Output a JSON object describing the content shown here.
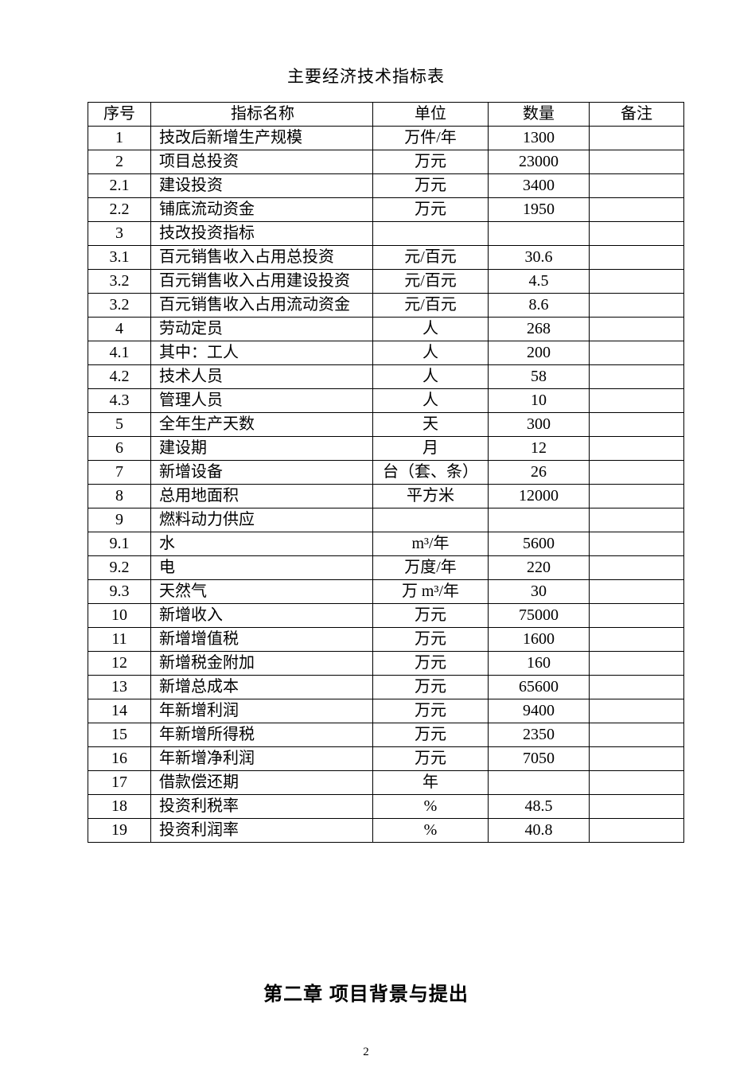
{
  "title": "主要经济技术指标表",
  "header": {
    "no": "序号",
    "name": "指标名称",
    "unit": "单位",
    "qty": "数量",
    "note": "备注"
  },
  "rows": [
    {
      "no": "1",
      "name": "技改后新增生产规模",
      "unit": "万件/年",
      "qty": "1300",
      "note": ""
    },
    {
      "no": "2",
      "name": "项目总投资",
      "unit": "万元",
      "qty": "23000",
      "note": ""
    },
    {
      "no": "2.1",
      "name": "建设投资",
      "unit": "万元",
      "qty": "3400",
      "note": ""
    },
    {
      "no": "2.2",
      "name": "铺底流动资金",
      "unit": "万元",
      "qty": "1950",
      "note": ""
    },
    {
      "no": "3",
      "name": "技改投资指标",
      "unit": "",
      "qty": "",
      "note": ""
    },
    {
      "no": "3.1",
      "name": "百元销售收入占用总投资",
      "unit": "元/百元",
      "qty": "30.6",
      "note": ""
    },
    {
      "no": "3.2",
      "name": "百元销售收入占用建设投资",
      "unit": "元/百元",
      "qty": "4.5",
      "note": ""
    },
    {
      "no": "3.2",
      "name": "百元销售收入占用流动资金",
      "unit": "元/百元",
      "qty": "8.6",
      "note": ""
    },
    {
      "no": "4",
      "name": "劳动定员",
      "unit": "人",
      "qty": "268",
      "note": ""
    },
    {
      "no": "4.1",
      "name": "其中：工人",
      "unit": "人",
      "qty": "200",
      "note": ""
    },
    {
      "no": "4.2",
      "name": "技术人员",
      "unit": "人",
      "qty": "58",
      "note": ""
    },
    {
      "no": "4.3",
      "name": "管理人员",
      "unit": "人",
      "qty": "10",
      "note": ""
    },
    {
      "no": "5",
      "name": "全年生产天数",
      "unit": "天",
      "qty": "300",
      "note": ""
    },
    {
      "no": "6",
      "name": "建设期",
      "unit": "月",
      "qty": "12",
      "note": ""
    },
    {
      "no": "7",
      "name": "新增设备",
      "unit": "台（套、条）",
      "qty": "26",
      "note": ""
    },
    {
      "no": "8",
      "name": "总用地面积",
      "unit": "平方米",
      "qty": "12000",
      "note": ""
    },
    {
      "no": "9",
      "name": "燃料动力供应",
      "unit": "",
      "qty": "",
      "note": ""
    },
    {
      "no": "9.1",
      "name": "水",
      "unit": "m³/年",
      "qty": "5600",
      "note": ""
    },
    {
      "no": "9.2",
      "name": "电",
      "unit": "万度/年",
      "qty": "220",
      "note": ""
    },
    {
      "no": "9.3",
      "name": "天然气",
      "unit": "万 m³/年",
      "qty": "30",
      "note": ""
    },
    {
      "no": "10",
      "name": "新增收入",
      "unit": "万元",
      "qty": "75000",
      "note": ""
    },
    {
      "no": "11",
      "name": "新增增值税",
      "unit": "万元",
      "qty": "1600",
      "note": ""
    },
    {
      "no": "12",
      "name": "新增税金附加",
      "unit": "万元",
      "qty": "160",
      "note": ""
    },
    {
      "no": "13",
      "name": "新增总成本",
      "unit": "万元",
      "qty": "65600",
      "note": ""
    },
    {
      "no": "14",
      "name": "年新增利润",
      "unit": "万元",
      "qty": "9400",
      "note": ""
    },
    {
      "no": "15",
      "name": "年新增所得税",
      "unit": "万元",
      "qty": "2350",
      "note": ""
    },
    {
      "no": "16",
      "name": "年新增净利润",
      "unit": "万元",
      "qty": "7050",
      "note": ""
    },
    {
      "no": "17",
      "name": "借款偿还期",
      "unit": "年",
      "qty": "",
      "note": ""
    },
    {
      "no": "18",
      "name": "投资利税率",
      "unit": "%",
      "qty": "48.5",
      "note": ""
    },
    {
      "no": "19",
      "name": "投资利润率",
      "unit": "%",
      "qty": "40.8",
      "note": ""
    }
  ],
  "chapter": "第二章  项目背景与提出",
  "page_number": "2"
}
